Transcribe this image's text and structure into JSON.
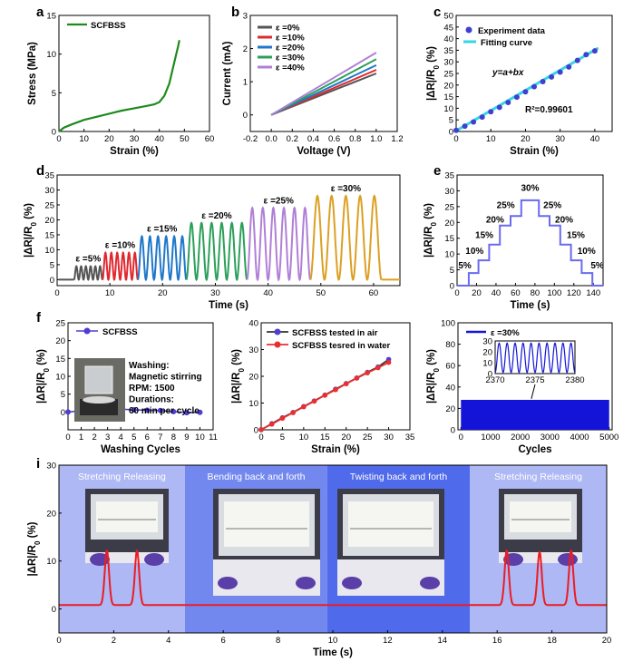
{
  "chart_data": [
    {
      "panel": "a",
      "type": "line",
      "xlabel": "Strain (%)",
      "ylabel": "Stress (MPa)",
      "xlim": [
        0,
        60
      ],
      "ylim": [
        0,
        15
      ],
      "xticks": [
        0,
        10,
        20,
        30,
        40,
        50,
        60
      ],
      "yticks": [
        0,
        5,
        10,
        15
      ],
      "series": [
        {
          "name": "SCFBSS",
          "color": "#1e8a1e",
          "x": [
            0,
            2,
            5,
            10,
            15,
            20,
            25,
            30,
            35,
            38,
            40,
            42,
            44,
            46,
            47.5,
            48
          ],
          "y": [
            0,
            0.5,
            0.9,
            1.5,
            1.9,
            2.3,
            2.7,
            3.0,
            3.3,
            3.5,
            3.8,
            4.6,
            6.2,
            9.0,
            11.0,
            11.8
          ]
        }
      ]
    },
    {
      "panel": "b",
      "type": "line",
      "xlabel": "Voltage (V)",
      "ylabel": "Current (mA)",
      "xlim": [
        -0.2,
        1.2
      ],
      "ylim": [
        -0.5,
        3
      ],
      "xticks": [
        -0.2,
        0.0,
        0.2,
        0.4,
        0.6,
        0.8,
        1.0,
        1.2
      ],
      "yticks": [
        0,
        1,
        2,
        3
      ],
      "xtick_labels": [
        "-0.2",
        "0.0",
        "0.2",
        "0.4",
        "0.6",
        "0.8",
        "1.0",
        "1.2"
      ],
      "series": [
        {
          "name": "ε =0%",
          "color": "#555555",
          "x": [
            0,
            1.0
          ],
          "y": [
            0,
            1.25
          ]
        },
        {
          "name": "ε =10%",
          "color": "#e0282e",
          "x": [
            0,
            1.0
          ],
          "y": [
            0,
            1.36
          ]
        },
        {
          "name": "ε =20%",
          "color": "#1f77c9",
          "x": [
            0,
            1.0
          ],
          "y": [
            0,
            1.5
          ]
        },
        {
          "name": "ε =30%",
          "color": "#2ca05a",
          "x": [
            0,
            1.0
          ],
          "y": [
            0,
            1.68
          ]
        },
        {
          "name": "ε =40%",
          "color": "#b07fd6",
          "x": [
            0,
            1.0
          ],
          "y": [
            0,
            1.88
          ]
        }
      ]
    },
    {
      "panel": "c",
      "type": "scatter",
      "xlabel": "Strain (%)",
      "ylabel": "|ΔR|/R0 (%)",
      "xlim": [
        0,
        45
      ],
      "ylim": [
        0,
        50
      ],
      "xticks": [
        0,
        10,
        20,
        30,
        40
      ],
      "yticks": [
        0,
        5,
        10,
        15,
        20,
        25,
        30,
        35,
        40,
        45,
        50
      ],
      "x": [
        0,
        2.5,
        5,
        7.5,
        10,
        12.5,
        15,
        17.5,
        20,
        22.5,
        25,
        27.5,
        30,
        32.5,
        35,
        37.5,
        40
      ],
      "y": [
        0.5,
        2.3,
        4.1,
        6.2,
        8.5,
        10.4,
        12.5,
        14.8,
        17.1,
        19.3,
        21.5,
        23.5,
        25.6,
        27.8,
        30.6,
        33.1,
        34.7
      ],
      "fit": {
        "a": 0.3,
        "b": 0.87,
        "x": [
          0,
          41
        ]
      },
      "legend": [
        "Experiment data",
        "Fitting curve"
      ],
      "annotations": [
        "y=a+bx",
        "R²=0.99601"
      ]
    },
    {
      "panel": "d",
      "type": "line",
      "xlabel": "Time (s)",
      "ylabel": "|ΔR|/R0 (%)",
      "xlim": [
        0,
        65
      ],
      "ylim": [
        -2,
        35
      ],
      "xticks": [
        0,
        10,
        20,
        30,
        40,
        50,
        60
      ],
      "yticks": [
        0,
        5,
        10,
        15,
        20,
        25,
        30,
        35
      ],
      "segments": [
        {
          "label": "ε =5%",
          "color": "#555555",
          "t0": 3.2,
          "t1": 8.6,
          "peak": 4.5,
          "cycles": 6
        },
        {
          "label": "ε =10%",
          "color": "#e0282e",
          "t0": 8.6,
          "t1": 15.3,
          "peak": 9.0,
          "cycles": 6
        },
        {
          "label": "ε =15%",
          "color": "#1f77c9",
          "t0": 15.3,
          "t1": 24.5,
          "peak": 14.5,
          "cycles": 6
        },
        {
          "label": "ε =20%",
          "color": "#2ca05a",
          "t0": 24.5,
          "t1": 36.0,
          "peak": 19.0,
          "cycles": 6
        },
        {
          "label": "ε =25%",
          "color": "#b07fd6",
          "t0": 36.0,
          "t1": 48.0,
          "peak": 24.0,
          "cycles": 6
        },
        {
          "label": "ε =30%",
          "color": "#dca023",
          "t0": 48.0,
          "t1": 61.5,
          "peak": 28.0,
          "cycles": 5
        }
      ]
    },
    {
      "panel": "e",
      "type": "line",
      "xlabel": "Time (s)",
      "ylabel": "|ΔR|/R0 (%)",
      "xlim": [
        0,
        150
      ],
      "ylim": [
        0,
        35
      ],
      "xticks": [
        0,
        20,
        40,
        60,
        80,
        100,
        120,
        140
      ],
      "yticks": [
        0,
        5,
        10,
        15,
        20,
        25,
        30,
        35
      ],
      "color": "#6a6af0",
      "x": [
        0,
        12,
        12,
        22,
        22,
        33,
        33,
        44,
        44,
        55,
        55,
        66,
        66,
        84,
        84,
        95,
        95,
        106,
        106,
        117,
        117,
        128,
        128,
        139,
        139,
        150
      ],
      "y": [
        0,
        0,
        4,
        4,
        8,
        8,
        13,
        13,
        19,
        19,
        22,
        22,
        27,
        27,
        22,
        22,
        19,
        19,
        13,
        13,
        8,
        8,
        4,
        4,
        0,
        0
      ],
      "step_labels": [
        {
          "text": "5%",
          "x": 8,
          "y": 5.5
        },
        {
          "text": "10%",
          "x": 18,
          "y": 10
        },
        {
          "text": "15%",
          "x": 28,
          "y": 15
        },
        {
          "text": "20%",
          "x": 39,
          "y": 20
        },
        {
          "text": "25%",
          "x": 50,
          "y": 24.5
        },
        {
          "text": "30%",
          "x": 75,
          "y": 30
        },
        {
          "text": "25%",
          "x": 98,
          "y": 24.5
        },
        {
          "text": "20%",
          "x": 110,
          "y": 20
        },
        {
          "text": "15%",
          "x": 122,
          "y": 15
        },
        {
          "text": "10%",
          "x": 133,
          "y": 10
        },
        {
          "text": "5%",
          "x": 144,
          "y": 5.5
        }
      ]
    },
    {
      "panel": "f1",
      "type": "line",
      "xlabel": "Washing Cycles",
      "ylabel": "|ΔR|/R0 (%)",
      "xlim": [
        0,
        11
      ],
      "ylim": [
        -5,
        25
      ],
      "xticks": [
        0,
        1,
        2,
        3,
        4,
        5,
        6,
        7,
        8,
        9,
        10,
        11
      ],
      "yticks": [
        0,
        5,
        10,
        15,
        20,
        25
      ],
      "series": [
        {
          "name": "SCFBSS",
          "color": "#4e3fd0",
          "x": [
            0,
            1,
            2,
            3,
            4,
            5,
            6,
            7,
            8,
            9,
            10
          ],
          "y": [
            0,
            0.3,
            0.8,
            1.1,
            0.8,
            0.6,
            0.5,
            0.4,
            0.1,
            -0.2,
            -0.1
          ]
        }
      ],
      "inset_text": [
        "Washing:",
        "Magnetic stirring",
        "RPM: 1500",
        "Durations:",
        "60 min per cycle"
      ]
    },
    {
      "panel": "f2",
      "type": "line",
      "xlabel": "Strain (%)",
      "ylabel": "|ΔR|/R0 (%)",
      "xlim": [
        0,
        35
      ],
      "ylim": [
        0,
        40
      ],
      "xticks": [
        0,
        5,
        10,
        15,
        20,
        25,
        30,
        35
      ],
      "yticks": [
        0,
        10,
        20,
        30,
        40
      ],
      "series": [
        {
          "name": "SCFBSS tested in air",
          "color": "#4e3fd0",
          "line": "#333333",
          "x": [
            0,
            2.5,
            5,
            7.5,
            10,
            12.5,
            15,
            17.5,
            20,
            22.5,
            25,
            27.5,
            30
          ],
          "y": [
            0,
            2.3,
            4.5,
            6.5,
            8.7,
            10.8,
            13.0,
            15.2,
            17.3,
            19.4,
            21.5,
            23.5,
            26.3
          ]
        },
        {
          "name": "SCFBSS tesred in water",
          "color": "#e83030",
          "line": "#e83030",
          "x": [
            0,
            2.5,
            5,
            7.5,
            10,
            12.5,
            15,
            17.5,
            20,
            22.5,
            25,
            27.5,
            30
          ],
          "y": [
            0.1,
            2.1,
            4.3,
            6.4,
            8.6,
            10.7,
            12.9,
            15.0,
            17.2,
            19.3,
            21.3,
            23.2,
            25.2
          ]
        }
      ]
    },
    {
      "panel": "f3",
      "type": "line",
      "xlabel": "Cycles",
      "ylabel": "|ΔR|/R0 (%)",
      "xlim": [
        -100,
        5100
      ],
      "ylim": [
        0,
        100
      ],
      "xticks": [
        0,
        1000,
        2000,
        3000,
        4000,
        5000
      ],
      "yticks": [
        0,
        20,
        40,
        60,
        80,
        100
      ],
      "series": [
        {
          "name": "ε =30%",
          "color": "#1414d8",
          "band": [
            0,
            28
          ]
        }
      ],
      "inset": {
        "xlim": [
          2370,
          2380
        ],
        "ylim": [
          0,
          30
        ],
        "xticks": [
          2370,
          2375,
          2380
        ],
        "yticks": [
          0,
          10,
          20,
          30
        ],
        "cycles": 10
      }
    },
    {
      "panel": "i",
      "type": "line",
      "xlabel": "Time (s)",
      "ylabel": "|ΔR|/R0 (%)",
      "xlim": [
        0,
        20
      ],
      "ylim": [
        -5,
        30
      ],
      "xticks": [
        0,
        2,
        4,
        6,
        8,
        10,
        12,
        14,
        16,
        18,
        20
      ],
      "yticks": [
        0,
        10,
        20,
        30
      ],
      "color": "#ec1c24",
      "peaks": [
        {
          "t": 1.75,
          "h": 11.5
        },
        {
          "t": 2.85,
          "h": 11.5
        },
        {
          "t": 16.35,
          "h": 11.5
        },
        {
          "t": 17.55,
          "h": 11.2
        },
        {
          "t": 18.7,
          "h": 11.5
        }
      ],
      "baseline": 0.8,
      "bands": [
        {
          "label": "Stretching Releasing",
          "from": 0,
          "to": 4.6,
          "color": "#aeb8f4"
        },
        {
          "label": "Bending back and forth",
          "from": 4.6,
          "to": 9.8,
          "color": "#7388ef"
        },
        {
          "label": "Twisting back and forth",
          "from": 9.8,
          "to": 15.0,
          "color": "#4f6aea"
        },
        {
          "label": "Stretching Releasing",
          "from": 15.0,
          "to": 20.0,
          "color": "#aeb8f4"
        }
      ]
    }
  ],
  "panel_letters": {
    "a": "a",
    "b": "b",
    "c": "c",
    "d": "d",
    "e": "e",
    "f": "f",
    "i": "i"
  },
  "extra_labels": {
    "a_legend": "SCFBSS",
    "c_eq": "y=a+bx",
    "c_r2": "R²=0.99601",
    "f3_legend": "ε =30%"
  }
}
